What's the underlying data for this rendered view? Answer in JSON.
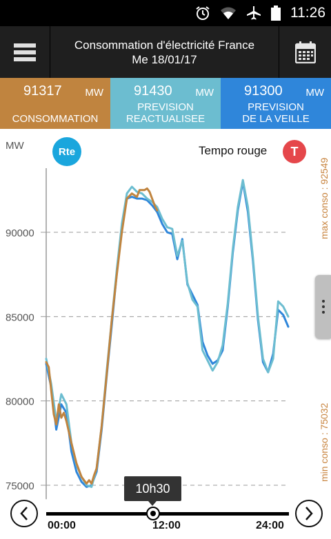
{
  "status_bar": {
    "time": "11:26",
    "icons": [
      "alarm-icon",
      "wifi-icon",
      "airplane-icon",
      "battery-icon"
    ]
  },
  "header": {
    "title_line1": "Consommation d'électricité France",
    "title_line2": "Me 18/01/17",
    "menu_icon": "hamburger-menu-icon",
    "calendar_icon": "calendar-icon"
  },
  "summary": [
    {
      "value": "91317",
      "unit": "MW",
      "label_line1": "CONSOMMATION",
      "label_line2": "",
      "color": "#c0843f"
    },
    {
      "value": "91430",
      "unit": "MW",
      "label_line1": "PREVISION",
      "label_line2": "REACTUALISEE",
      "color": "#6cbdd0"
    },
    {
      "value": "91300",
      "unit": "MW",
      "label_line1": "PREVISION",
      "label_line2": "DE LA VEILLE",
      "color": "#2f86da"
    }
  ],
  "chart_labels": {
    "y_unit": "MW",
    "logo_text": "Rte",
    "tempo": "Tempo rouge",
    "tempo_badge": "T",
    "max_conso": "max conso : 92549",
    "min_conso": "min conso : 75032",
    "tooltip_time": "10h30"
  },
  "slider": {
    "ticks": [
      "00:00",
      "12:00",
      "24:00"
    ],
    "current_hour": 10.5
  },
  "chart_data": {
    "type": "line",
    "ylim": [
      74500,
      93800
    ],
    "xlim": [
      0,
      24
    ],
    "y_ticks": [
      75000,
      80000,
      85000,
      90000
    ],
    "x_ticks": [
      "00:00",
      "12:00",
      "24:00"
    ],
    "grid": "dashed horizontal",
    "series": [
      {
        "name": "CONSOMMATION",
        "color": "#c0843f",
        "x": [
          0,
          0.25,
          0.5,
          0.75,
          1,
          1.25,
          1.5,
          1.75,
          2,
          2.5,
          3,
          3.5,
          4,
          4.25,
          4.5,
          4.75,
          5,
          5.5,
          6,
          6.5,
          7,
          7.5,
          8,
          8.5,
          9,
          9.25,
          9.5,
          9.75,
          10,
          10.25,
          10.5,
          10.75,
          11
        ],
        "y": [
          82300,
          82000,
          80600,
          79200,
          78600,
          79800,
          79000,
          79300,
          78800,
          77500,
          76300,
          75500,
          75100,
          75300,
          75100,
          75600,
          76000,
          78500,
          81600,
          84800,
          87500,
          90000,
          92000,
          92300,
          92100,
          92500,
          92500,
          92500,
          92600,
          92400,
          92000,
          91600,
          91300
        ]
      },
      {
        "name": "PREVISION REACTUALISEE",
        "color": "#6cbdd0",
        "x": [
          0,
          0.5,
          1,
          1.5,
          2,
          2.5,
          3,
          3.5,
          4,
          4.5,
          5,
          5.5,
          6,
          6.5,
          7,
          7.5,
          8,
          8.5,
          9,
          9.5,
          10,
          10.5,
          11,
          11.5,
          12,
          12.5,
          13,
          13.5,
          14,
          14.5,
          15,
          15.5,
          16,
          16.5,
          17,
          17.5,
          18,
          18.5,
          19,
          19.5,
          20,
          20.5,
          21,
          21.5,
          22,
          22.5,
          23,
          23.5,
          24
        ],
        "y": [
          82500,
          81000,
          78800,
          80400,
          79800,
          77500,
          76200,
          75500,
          75000,
          74900,
          76000,
          78500,
          81800,
          84800,
          87800,
          90500,
          92300,
          92700,
          92400,
          92300,
          92000,
          91800,
          91500,
          90800,
          90300,
          90200,
          88600,
          89500,
          87000,
          86000,
          85600,
          83000,
          82400,
          81800,
          82300,
          83300,
          85800,
          89000,
          91500,
          93100,
          91500,
          88500,
          85000,
          82500,
          81700,
          82500,
          85900,
          85600,
          85000
        ]
      },
      {
        "name": "PREVISION DE LA VEILLE",
        "color": "#2f86da",
        "x": [
          0,
          0.5,
          1,
          1.5,
          2,
          2.5,
          3,
          3.5,
          4,
          4.5,
          5,
          5.5,
          6,
          6.5,
          7,
          7.5,
          8,
          8.5,
          9,
          9.5,
          10,
          10.5,
          11,
          11.5,
          12,
          12.5,
          13,
          13.5,
          14,
          14.5,
          15,
          15.5,
          16,
          16.5,
          17,
          17.5,
          18,
          18.5,
          19,
          19.5,
          20,
          20.5,
          21,
          21.5,
          22,
          22.5,
          23,
          23.5,
          24
        ],
        "y": [
          82200,
          80800,
          78300,
          79800,
          79300,
          77000,
          75800,
          75200,
          74900,
          75000,
          75800,
          78300,
          81500,
          84500,
          87600,
          90300,
          92000,
          92100,
          92000,
          92000,
          91900,
          91600,
          91200,
          90500,
          90000,
          89900,
          88400,
          89600,
          86900,
          86300,
          85700,
          83500,
          82700,
          82200,
          82400,
          83000,
          85600,
          88800,
          91300,
          93000,
          91200,
          88300,
          84800,
          82300,
          81700,
          82800,
          85400,
          85100,
          84400
        ]
      }
    ]
  }
}
